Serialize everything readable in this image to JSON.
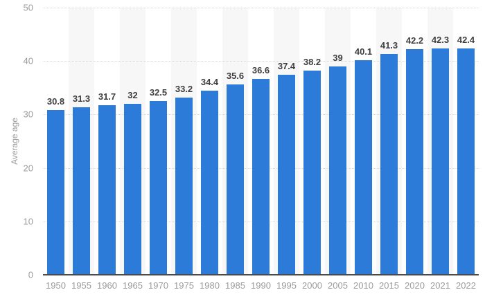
{
  "chart_data": {
    "type": "bar",
    "title": "",
    "ylabel": "Average age",
    "xlabel": "",
    "categories": [
      "1950",
      "1955",
      "1960",
      "1965",
      "1970",
      "1975",
      "1980",
      "1985",
      "1990",
      "1995",
      "2000",
      "2005",
      "2010",
      "2015",
      "2020",
      "2021",
      "2022"
    ],
    "values": [
      30.8,
      31.3,
      31.7,
      32,
      32.5,
      33.2,
      34.4,
      35.6,
      36.6,
      37.4,
      38.2,
      39,
      40.1,
      41.3,
      42.2,
      42.3,
      42.4
    ],
    "ylim": [
      0,
      50
    ],
    "yticks": [
      0,
      10,
      20,
      30,
      40,
      50
    ],
    "grid": "horizontal-dotted",
    "legend": "none",
    "plot_background": "alternating-column-bands",
    "colors": {
      "bar": "#2c7bd9",
      "band": "#f7f7f7",
      "gridline": "#d9d9d9",
      "axis_line": "#4a4a4a",
      "tick_label": "#9b9b9b",
      "value_label": "#3f3f3f"
    }
  }
}
